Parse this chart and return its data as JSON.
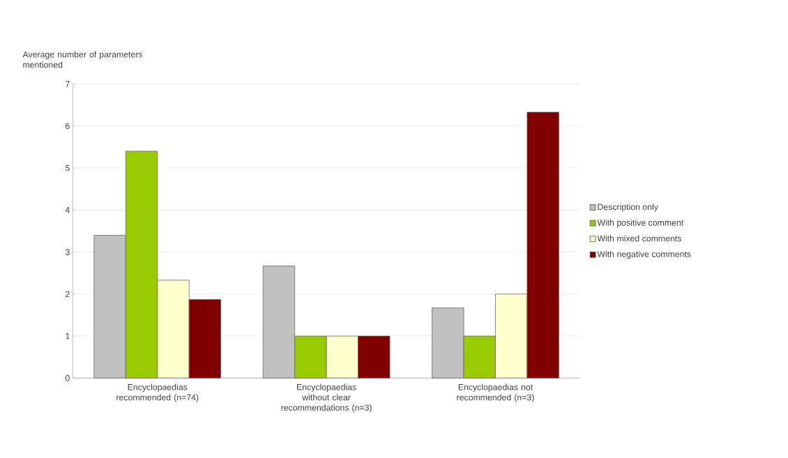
{
  "chart_data": {
    "type": "bar",
    "ylabel": "Average number of parameters mentioned",
    "categories": [
      "Encyclopaedias recommended (n=74)",
      "Encyclopaedias without clear recommendations (n=3)",
      "Encyclopaedias not recommended (n=3)"
    ],
    "series": [
      {
        "name": "Description only",
        "color": "#c0c0c0",
        "values": [
          3.4,
          2.67,
          1.67
        ]
      },
      {
        "name": "With positive comment",
        "color": "#99cc00",
        "values": [
          5.4,
          1,
          1
        ]
      },
      {
        "name": "With mixed comments",
        "color": "#ffffcc",
        "values": [
          2.33,
          1,
          2
        ]
      },
      {
        "name": "With negative comments",
        "color": "#800000",
        "values": [
          1.87,
          1,
          6.33
        ]
      }
    ],
    "ylim": [
      0,
      7
    ],
    "yticks": [
      0,
      1,
      2,
      3,
      4,
      5,
      6,
      7
    ],
    "grid": "y",
    "legend": "right"
  }
}
